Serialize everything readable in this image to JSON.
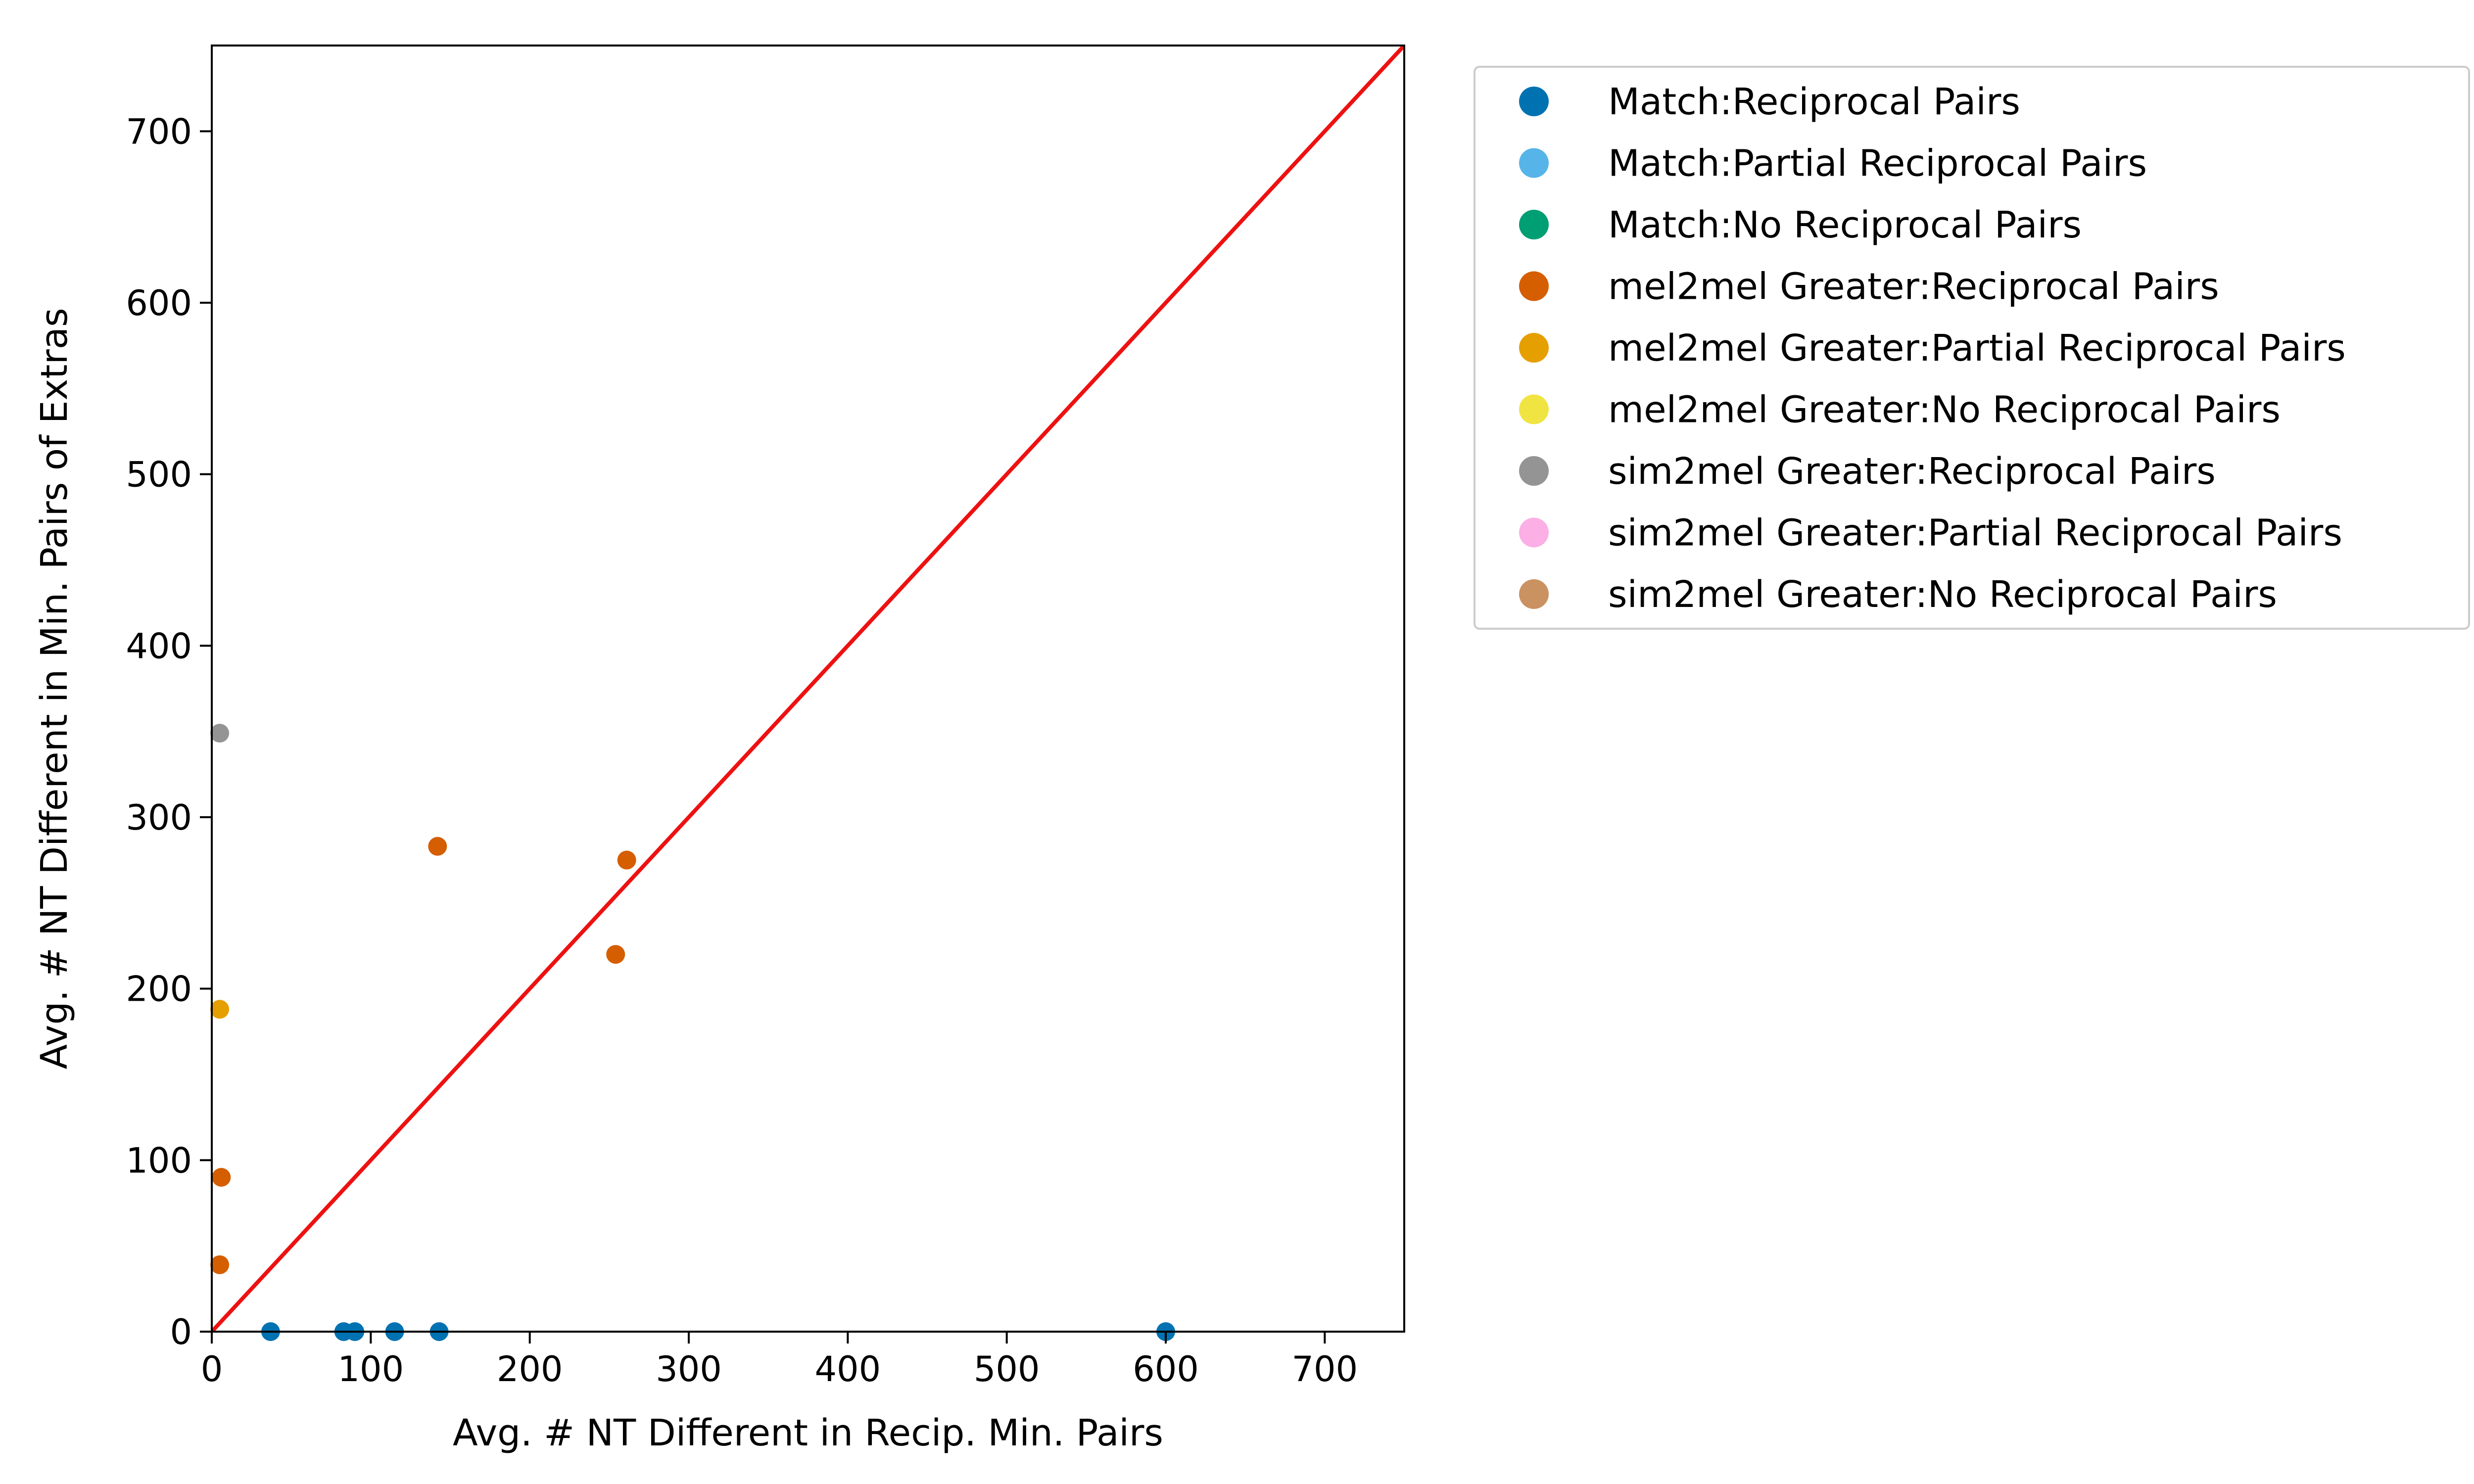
{
  "chart_data": {
    "type": "scatter",
    "title": "",
    "xlabel": "Avg. # NT Different in Recip. Min. Pairs",
    "ylabel": "Avg. # NT Different in Min. Pairs of Extras",
    "xlim": [
      0,
      750
    ],
    "ylim": [
      0,
      750
    ],
    "xticks": [
      "0",
      "100",
      "200",
      "300",
      "400",
      "500",
      "600",
      "700"
    ],
    "yticks": [
      "0",
      "100",
      "200",
      "300",
      "400",
      "500",
      "600",
      "700"
    ],
    "grid": false,
    "legend_position": "outside right, top",
    "reference_line": {
      "type": "y=x",
      "color": "#ee1111"
    },
    "series": [
      {
        "name": "Match:Reciprocal Pairs",
        "color": "#0072b2",
        "points": [
          [
            37,
            0
          ],
          [
            83,
            0
          ],
          [
            90,
            0
          ],
          [
            115,
            0
          ],
          [
            143,
            0
          ],
          [
            600,
            0
          ]
        ]
      },
      {
        "name": "Match:Partial Reciprocal Pairs",
        "color": "#56b4e9",
        "points": []
      },
      {
        "name": "Match:No Reciprocal Pairs",
        "color": "#009e73",
        "points": []
      },
      {
        "name": "mel2mel Greater:Reciprocal Pairs",
        "color": "#d55e00",
        "points": [
          [
            142,
            283
          ],
          [
            261,
            275
          ],
          [
            254,
            220
          ],
          [
            6,
            90
          ],
          [
            5,
            39
          ]
        ]
      },
      {
        "name": "mel2mel Greater:Partial Reciprocal Pairs",
        "color": "#e69f00",
        "points": [
          [
            5,
            188
          ]
        ]
      },
      {
        "name": "mel2mel Greater:No Reciprocal Pairs",
        "color": "#f0e442",
        "points": []
      },
      {
        "name": "sim2mel Greater:Reciprocal Pairs",
        "color": "#949494",
        "points": [
          [
            5,
            349
          ]
        ]
      },
      {
        "name": "sim2mel Greater:Partial Reciprocal Pairs",
        "color": "#fbafe4",
        "points": []
      },
      {
        "name": "sim2mel Greater:No Reciprocal Pairs",
        "color": "#ca9161",
        "points": []
      }
    ]
  }
}
